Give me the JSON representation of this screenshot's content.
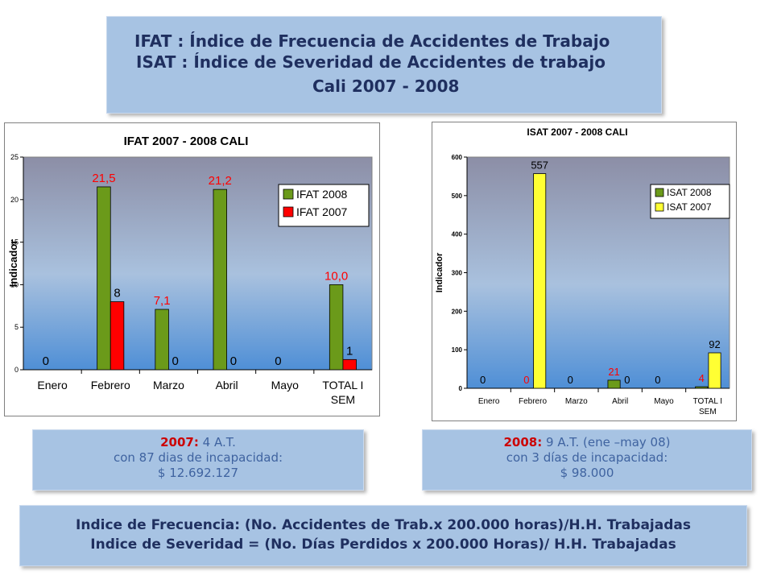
{
  "header": {
    "line1": "IFAT : Índice de Frecuencia  de Accidentes de Trabajo",
    "line2": "ISAT : Índice de Severidad  de Accidentes de trabajo",
    "line3": "Cali 2007 - 2008"
  },
  "chart_data": [
    {
      "type": "bar",
      "title": "IFAT 2007 - 2008  CALI",
      "ylabel": "Indicador",
      "xlabel": "",
      "ylim": [
        0,
        25
      ],
      "yticks": [
        0,
        5,
        10,
        15,
        20,
        25
      ],
      "ytick_labels": [
        "0",
        "5",
        "10",
        "15",
        "20",
        "25"
      ],
      "categories": [
        [
          "Enero"
        ],
        [
          "Febrero"
        ],
        [
          "Marzo"
        ],
        [
          "Abril"
        ],
        [
          "Mayo"
        ],
        [
          "TOTAL I",
          "SEM"
        ]
      ],
      "series": [
        {
          "name": "IFAT 2008",
          "color": "#6b9a1a",
          "values": [
            0,
            21.5,
            7.1,
            21.2,
            0,
            10.0
          ],
          "labels": [
            "0",
            "21,5",
            "7,1",
            "21,2",
            "0",
            "10,0"
          ],
          "label_colors": [
            "#000000",
            "#ff0000",
            "#ff0000",
            "#ff0000",
            "#000000",
            "#ff0000"
          ]
        },
        {
          "name": "IFAT 2007",
          "color": "#ff0000",
          "values": [
            0,
            8,
            0,
            0,
            0,
            1.2
          ],
          "labels": [
            "",
            "8",
            "0",
            "0",
            "",
            "1"
          ],
          "label_colors": [
            "#000000",
            "#000000",
            "#000000",
            "#000000",
            "#000000",
            "#000000"
          ]
        }
      ],
      "grid": false,
      "legend": "right"
    },
    {
      "type": "bar",
      "title": "ISAT 2007 - 2008 CALI",
      "ylabel": "Indicador",
      "xlabel": "",
      "ylim": [
        0,
        600
      ],
      "yticks": [
        0,
        100,
        200,
        300,
        400,
        500,
        600
      ],
      "ytick_labels": [
        "0",
        "100",
        "200",
        "300",
        "400",
        "500",
        "600"
      ],
      "categories": [
        [
          "Enero"
        ],
        [
          "Febrero"
        ],
        [
          "Marzo"
        ],
        [
          "Abril"
        ],
        [
          "Mayo"
        ],
        [
          "TOTAL I",
          "SEM"
        ]
      ],
      "series": [
        {
          "name": "ISAT 2008",
          "color": "#6b9a1a",
          "values": [
            0,
            0,
            0,
            21,
            0,
            4
          ],
          "labels": [
            "0",
            "0",
            "0",
            "21",
            "0",
            "4"
          ],
          "label_colors": [
            "#000000",
            "#ff0000",
            "#000000",
            "#ff0000",
            "#000000",
            "#ff0000"
          ]
        },
        {
          "name": "ISAT 2007",
          "color": "#ffff33",
          "values": [
            0,
            557,
            0,
            0,
            0,
            92
          ],
          "labels": [
            "",
            "557",
            "",
            "0",
            "",
            "92"
          ],
          "label_colors": [
            "#000000",
            "#000000",
            "#000000",
            "#000000",
            "#000000",
            "#000000"
          ]
        }
      ],
      "grid": false,
      "legend": "right"
    }
  ],
  "notes": {
    "left": {
      "year": "2007:",
      "line1": " 4 A.T.",
      "line2": "con  87 dias de incapacidad:",
      "line3": "$  12.692.127"
    },
    "right": {
      "year": "2008:",
      "line1": " 9 A.T. (ene –may 08)",
      "line2": "con  3 días de incapacidad:",
      "line3": "$ 98.000"
    }
  },
  "formula": {
    "line1": "Indice de Frecuencia: (No. Accidentes de Trab.x 200.000 horas)/H.H. Trabajadas",
    "line2": "Indice de Severidad = (No. Días Perdidos x 200.000 Horas)/ H.H. Trabajadas"
  }
}
